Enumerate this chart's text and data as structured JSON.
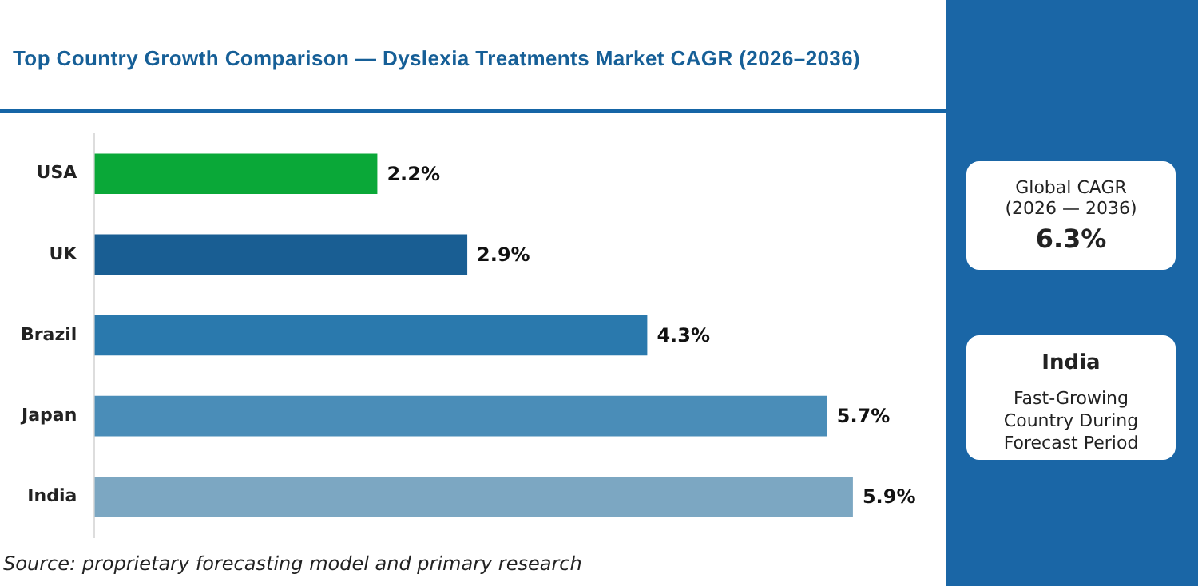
{
  "chart_data": {
    "type": "bar",
    "orientation": "horizontal",
    "title": "Top Country Growth Comparison — Dyslexia Treatments Market CAGR (2026–2036)",
    "categories": [
      "USA",
      "UK",
      "Brazil",
      "Japan",
      "India"
    ],
    "values": [
      2.2,
      2.9,
      4.3,
      5.7,
      5.9
    ],
    "colors": [
      "#0aa838",
      "#195e93",
      "#2a79ad",
      "#4a8db8",
      "#7ca7c2"
    ],
    "value_labels": [
      "2.2%",
      "2.9%",
      "4.3%",
      "5.7%",
      "5.9%"
    ],
    "grid": false,
    "legend": false,
    "tick_labels": "y",
    "annotations": [
      "Global CAGR",
      "(2026 — 2036)",
      "6.3%",
      "India",
      "Fast-Growing Country During Forecast Period",
      "Source: proprietary forecasting model and primary research"
    ]
  }
}
